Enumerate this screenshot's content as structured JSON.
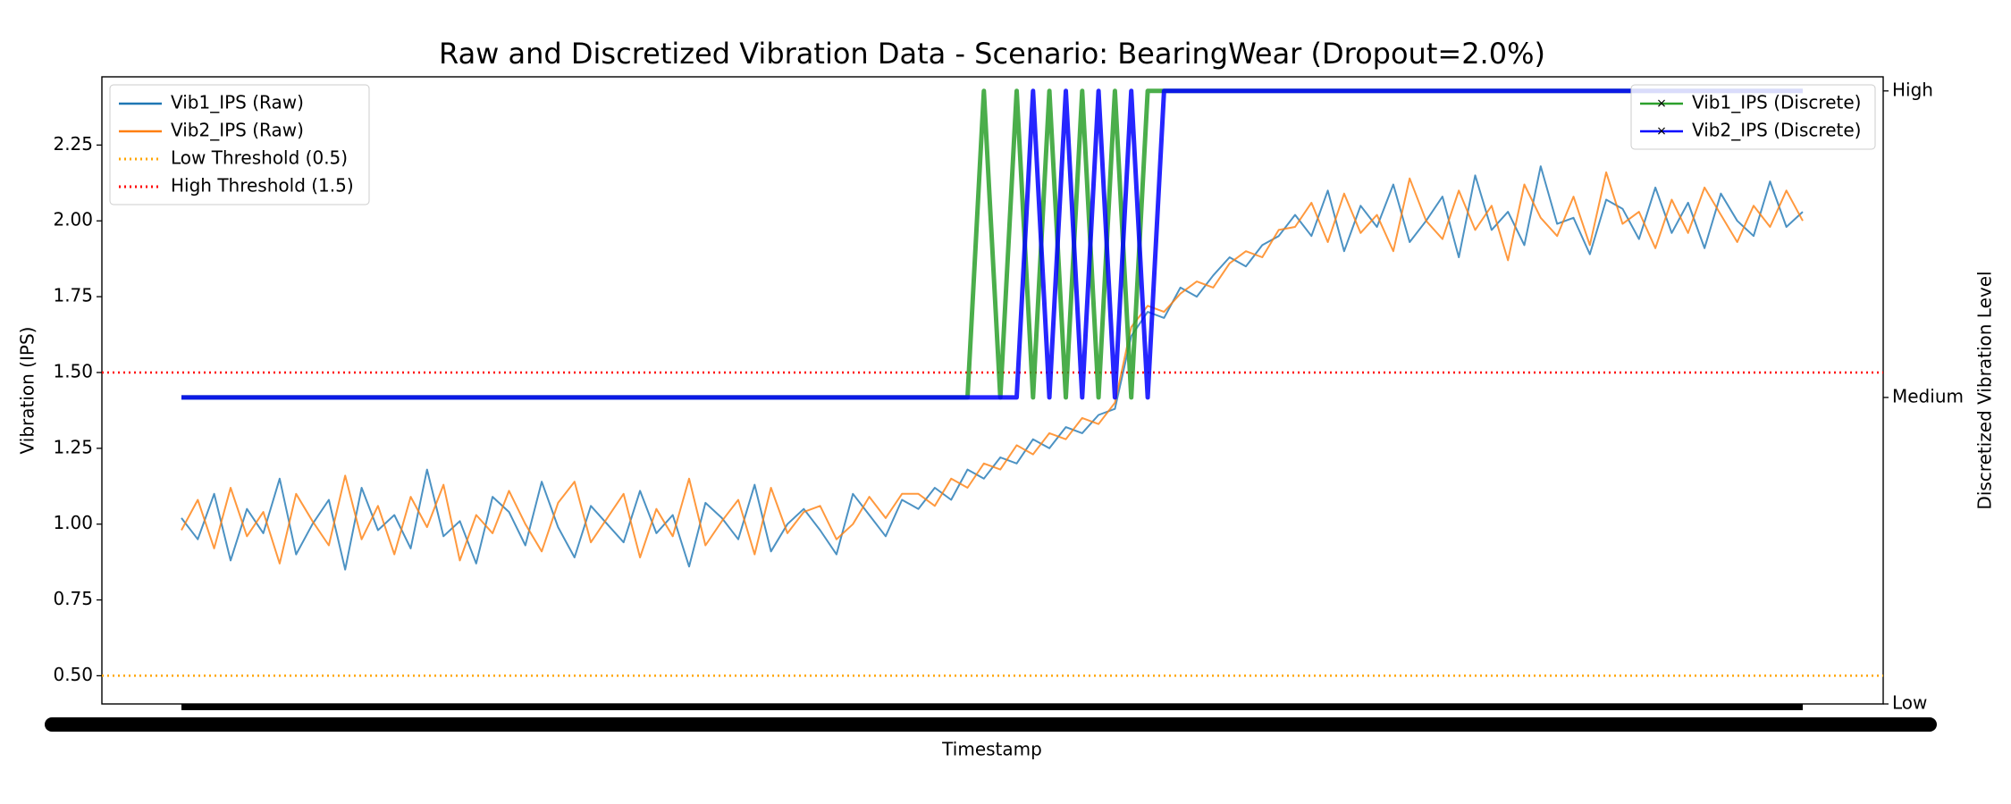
{
  "chart_data": {
    "type": "line",
    "title": "Raw and Discretized Vibration Data - Scenario: BearingWear (Dropout=2.0%)",
    "x_label": "Timestamp",
    "y_label": "Vibration (IPS)",
    "y2_label": "Discretized Vibration Level",
    "ylim": [
      0.407,
      2.475
    ],
    "yticks": [
      {
        "value": 0.5,
        "label": "0.50"
      },
      {
        "value": 0.75,
        "label": "0.75"
      },
      {
        "value": 1.0,
        "label": "1.00"
      },
      {
        "value": 1.25,
        "label": "1.25"
      },
      {
        "value": 1.5,
        "label": "1.50"
      },
      {
        "value": 1.75,
        "label": "1.75"
      },
      {
        "value": 2.0,
        "label": "2.00"
      },
      {
        "value": 2.25,
        "label": "2.25"
      }
    ],
    "y2lim": [
      0,
      2.046
    ],
    "y2ticks": [
      {
        "value": 0,
        "label": "Low"
      },
      {
        "value": 1,
        "label": "Medium"
      },
      {
        "value": 2,
        "label": "High"
      }
    ],
    "legend": "upper left",
    "legend2": "upper right",
    "thresholds": [
      {
        "name": "Low Threshold (0.5)",
        "value": 0.5,
        "color": "#ffa500"
      },
      {
        "name": "High Threshold (1.5)",
        "value": 1.5,
        "color": "#ff0000"
      }
    ],
    "series": [
      {
        "name": "Vib1_IPS (Raw)",
        "color": "#1f77b4",
        "axis": "y",
        "values": [
          1.02,
          0.95,
          1.1,
          0.88,
          1.05,
          0.97,
          1.15,
          0.9,
          1.0,
          1.08,
          0.85,
          1.12,
          0.98,
          1.03,
          0.92,
          1.18,
          0.96,
          1.01,
          0.87,
          1.09,
          1.04,
          0.93,
          1.14,
          0.99,
          0.89,
          1.06,
          1.0,
          0.94,
          1.11,
          0.97,
          1.03,
          0.86,
          1.07,
          1.02,
          0.95,
          1.13,
          0.91,
          1.0,
          1.05,
          0.98,
          0.9,
          1.1,
          1.03,
          0.96,
          1.08,
          1.05,
          1.12,
          1.08,
          1.18,
          1.15,
          1.22,
          1.2,
          1.28,
          1.25,
          1.32,
          1.3,
          1.36,
          1.38,
          1.62,
          1.7,
          1.68,
          1.78,
          1.75,
          1.82,
          1.88,
          1.85,
          1.92,
          1.95,
          2.02,
          1.95,
          2.1,
          1.9,
          2.05,
          1.98,
          2.12,
          1.93,
          2.0,
          2.08,
          1.88,
          2.15,
          1.97,
          2.03,
          1.92,
          2.18,
          1.99,
          2.01,
          1.89,
          2.07,
          2.04,
          1.94,
          2.11,
          1.96,
          2.06,
          1.91,
          2.09,
          2.0,
          1.95,
          2.13,
          1.98,
          2.03
        ]
      },
      {
        "name": "Vib2_IPS (Raw)",
        "color": "#ff7f0e",
        "axis": "y",
        "values": [
          0.98,
          1.08,
          0.92,
          1.12,
          0.96,
          1.04,
          0.87,
          1.1,
          1.01,
          0.93,
          1.16,
          0.95,
          1.06,
          0.9,
          1.09,
          0.99,
          1.13,
          0.88,
          1.03,
          0.97,
          1.11,
          1.0,
          0.91,
          1.07,
          1.14,
          0.94,
          1.02,
          1.1,
          0.89,
          1.05,
          0.96,
          1.15,
          0.93,
          1.01,
          1.08,
          0.9,
          1.12,
          0.97,
          1.04,
          1.06,
          0.95,
          1.0,
          1.09,
          1.02,
          1.1,
          1.1,
          1.06,
          1.15,
          1.12,
          1.2,
          1.18,
          1.26,
          1.23,
          1.3,
          1.28,
          1.35,
          1.33,
          1.4,
          1.65,
          1.72,
          1.7,
          1.76,
          1.8,
          1.78,
          1.86,
          1.9,
          1.88,
          1.97,
          1.98,
          2.06,
          1.93,
          2.09,
          1.96,
          2.02,
          1.9,
          2.14,
          2.0,
          1.94,
          2.1,
          1.97,
          2.05,
          1.87,
          2.12,
          2.01,
          1.95,
          2.08,
          1.92,
          2.16,
          1.99,
          2.03,
          1.91,
          2.07,
          1.96,
          2.11,
          2.02,
          1.93,
          2.05,
          1.98,
          2.1,
          2.0
        ]
      },
      {
        "name": "Vib1_IPS (Discrete)",
        "color": "#2ca02c",
        "axis": "y2",
        "values": [
          1,
          1,
          1,
          1,
          1,
          1,
          1,
          1,
          1,
          1,
          1,
          1,
          1,
          1,
          1,
          1,
          1,
          1,
          1,
          1,
          1,
          1,
          1,
          1,
          1,
          1,
          1,
          1,
          1,
          1,
          1,
          1,
          1,
          1,
          1,
          1,
          1,
          1,
          1,
          1,
          1,
          1,
          1,
          1,
          1,
          1,
          1,
          1,
          1,
          2,
          1,
          2,
          1,
          2,
          1,
          2,
          1,
          2,
          1,
          2,
          2,
          2,
          2,
          2,
          2,
          2,
          2,
          2,
          2,
          2,
          2,
          2,
          2,
          2,
          2,
          2,
          2,
          2,
          2,
          2,
          2,
          2,
          2,
          2,
          2,
          2,
          2,
          2,
          2,
          2,
          2,
          2,
          2,
          2,
          2,
          2,
          2,
          2,
          2,
          2
        ]
      },
      {
        "name": "Vib2_IPS (Discrete)",
        "color": "#0000ff",
        "axis": "y2",
        "values": [
          1,
          1,
          1,
          1,
          1,
          1,
          1,
          1,
          1,
          1,
          1,
          1,
          1,
          1,
          1,
          1,
          1,
          1,
          1,
          1,
          1,
          1,
          1,
          1,
          1,
          1,
          1,
          1,
          1,
          1,
          1,
          1,
          1,
          1,
          1,
          1,
          1,
          1,
          1,
          1,
          1,
          1,
          1,
          1,
          1,
          1,
          1,
          1,
          1,
          1,
          1,
          1,
          2,
          1,
          2,
          1,
          2,
          1,
          2,
          1,
          2,
          2,
          2,
          2,
          2,
          2,
          2,
          2,
          2,
          2,
          2,
          2,
          2,
          2,
          2,
          2,
          2,
          2,
          2,
          2,
          2,
          2,
          2,
          2,
          2,
          2,
          2,
          2,
          2,
          2,
          2,
          2,
          2,
          2,
          2,
          2,
          2,
          2,
          2,
          2
        ]
      }
    ]
  }
}
